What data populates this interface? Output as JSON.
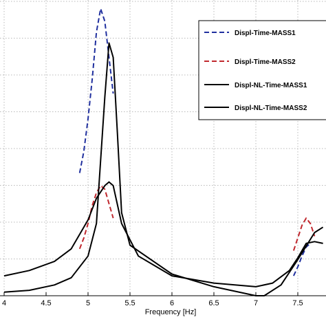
{
  "chart_data": {
    "type": "line",
    "xlabel": "Frequency [Hz]",
    "ylabel": "",
    "title": "",
    "xlim": [
      4.0,
      7.8
    ],
    "ylim": [
      0,
      8
    ],
    "xticks": [
      4,
      4.5,
      5,
      5.5,
      6,
      6.5,
      7,
      7.5
    ],
    "xtick_labels": [
      "4",
      "4.5",
      "5",
      "5.5",
      "6",
      "6.5",
      "7",
      "7.5"
    ],
    "grid": true,
    "legend_position": "top-right",
    "series": [
      {
        "name": "Displ-Time-MASS1",
        "color": "#1f2f9e",
        "style": "dashed",
        "x": [
          4.9,
          4.95,
          5.0,
          5.05,
          5.1,
          5.15,
          5.2,
          5.25,
          5.3,
          7.45,
          7.5,
          7.55,
          7.6,
          7.65
        ],
        "y": [
          3.4,
          4.0,
          4.9,
          6.0,
          7.3,
          7.95,
          7.6,
          6.6,
          5.6,
          0.55,
          0.8,
          1.1,
          1.35,
          1.45
        ]
      },
      {
        "name": "Displ-Time-MASS2",
        "color": "#c0272d",
        "style": "dashed",
        "x": [
          4.9,
          4.95,
          5.0,
          5.05,
          5.1,
          5.15,
          5.2,
          5.25,
          5.3,
          7.45,
          7.5,
          7.55,
          7.6,
          7.65,
          7.7
        ],
        "y": [
          1.3,
          1.6,
          2.0,
          2.5,
          2.85,
          3.05,
          2.95,
          2.55,
          2.15,
          1.25,
          1.6,
          1.95,
          2.15,
          2.0,
          1.65
        ]
      },
      {
        "name": "Displ-NL-Time-MASS1",
        "color": "#000000",
        "style": "solid",
        "x": [
          4.0,
          4.3,
          4.6,
          4.8,
          5.0,
          5.1,
          5.2,
          5.25,
          5.3,
          5.4,
          5.6,
          6.0,
          6.5,
          7.0,
          7.2,
          7.4,
          7.5,
          7.6,
          7.7,
          7.8
        ],
        "y": [
          0.55,
          0.7,
          0.95,
          1.3,
          2.1,
          2.7,
          3.05,
          3.15,
          3.05,
          2.0,
          1.1,
          0.55,
          0.35,
          0.25,
          0.35,
          0.7,
          1.05,
          1.45,
          1.5,
          1.45
        ]
      },
      {
        "name": "Displ-NL-Time-MASS2",
        "color": "#000000",
        "style": "solid",
        "x": [
          4.0,
          4.3,
          4.6,
          4.8,
          5.0,
          5.1,
          5.2,
          5.25,
          5.3,
          5.35,
          5.4,
          5.5,
          6.0,
          6.5,
          7.0,
          7.1,
          7.3,
          7.5,
          7.7,
          7.8
        ],
        "y": [
          0.1,
          0.15,
          0.3,
          0.5,
          1.1,
          2.0,
          5.5,
          7.0,
          6.6,
          4.5,
          2.3,
          1.4,
          0.6,
          0.25,
          0.0,
          0.0,
          0.3,
          1.0,
          1.75,
          1.9
        ]
      }
    ]
  }
}
